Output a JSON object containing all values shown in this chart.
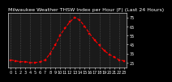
{
  "title": "Milwaukee Weather THSW Index per Hour (F) (Last 24 Hours)",
  "hours": [
    0,
    1,
    2,
    3,
    4,
    5,
    6,
    7,
    8,
    9,
    10,
    11,
    12,
    13,
    14,
    15,
    16,
    17,
    18,
    19,
    20,
    21,
    22,
    23
  ],
  "values": [
    28,
    27,
    26,
    26,
    25,
    25,
    26,
    28,
    35,
    44,
    55,
    63,
    70,
    75,
    72,
    65,
    57,
    50,
    44,
    38,
    34,
    31,
    28,
    27
  ],
  "line_color": "#ff0000",
  "marker_color": "#ff0000",
  "bg_color": "#000000",
  "plot_bg": "#1a1a1a",
  "grid_color": "#555555",
  "title_color": "#ffffff",
  "tick_color": "#ffffff",
  "spine_color": "#ffffff",
  "ylim": [
    20,
    80
  ],
  "yticks": [
    25,
    35,
    45,
    55,
    65,
    75
  ],
  "title_fontsize": 4.5,
  "tick_fontsize": 3.5,
  "line_width": 0.8,
  "marker_size": 2.0
}
